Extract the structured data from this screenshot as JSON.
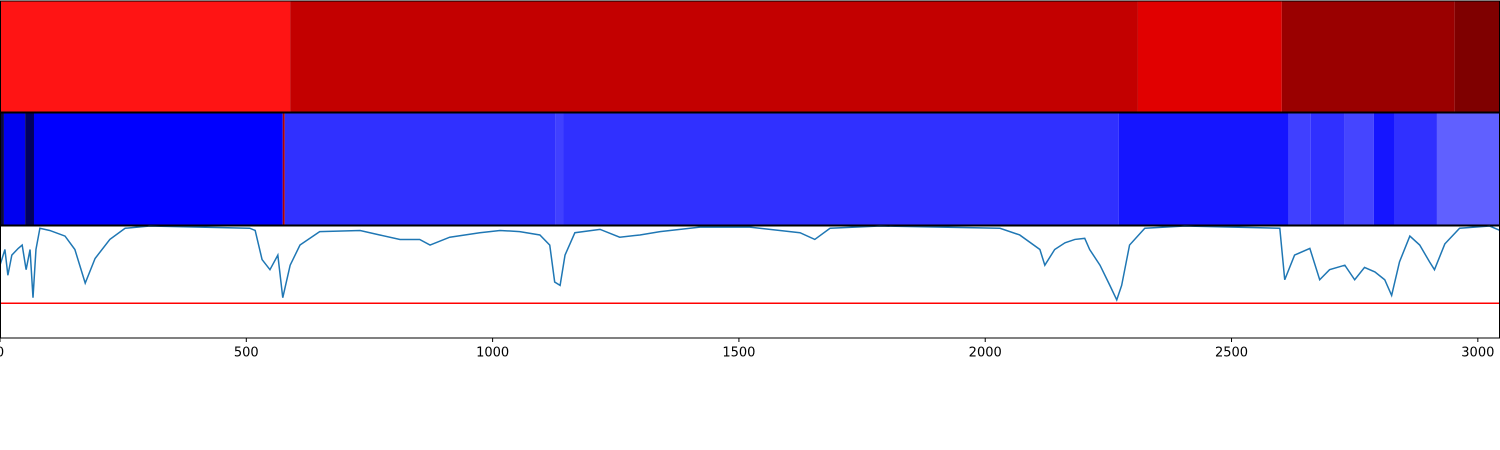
{
  "chart_data": [
    {
      "type": "segments",
      "xlim": [
        0,
        3045
      ],
      "segments": [
        {
          "start": 0,
          "end": 589,
          "color": "#ff1414"
        },
        {
          "start": 589,
          "end": 2310,
          "color": "#c30000"
        },
        {
          "start": 2310,
          "end": 2602,
          "color": "#e10000"
        },
        {
          "start": 2602,
          "end": 2953,
          "color": "#9a0000"
        },
        {
          "start": 2953,
          "end": 3045,
          "color": "#7f0000"
        }
      ]
    },
    {
      "type": "segments",
      "xlim": [
        0,
        3045
      ],
      "segments": [
        {
          "start": 0,
          "end": 8,
          "color": "#0a0a40"
        },
        {
          "start": 8,
          "end": 51,
          "color": "#0000f0"
        },
        {
          "start": 51,
          "end": 69,
          "color": "#000060"
        },
        {
          "start": 69,
          "end": 574,
          "color": "#0000ff"
        },
        {
          "start": 574,
          "end": 578,
          "color": "#b00000"
        },
        {
          "start": 578,
          "end": 1128,
          "color": "#3030ff"
        },
        {
          "start": 1128,
          "end": 1143,
          "color": "#4040ff"
        },
        {
          "start": 1143,
          "end": 2271,
          "color": "#3030ff"
        },
        {
          "start": 2271,
          "end": 2616,
          "color": "#1515ff"
        },
        {
          "start": 2616,
          "end": 2661,
          "color": "#4040ff"
        },
        {
          "start": 2661,
          "end": 2730,
          "color": "#3030ff"
        },
        {
          "start": 2730,
          "end": 2789,
          "color": "#4545ff"
        },
        {
          "start": 2789,
          "end": 2831,
          "color": "#1515ff"
        },
        {
          "start": 2831,
          "end": 2917,
          "color": "#3030ff"
        },
        {
          "start": 2917,
          "end": 3045,
          "color": "#6060ff"
        }
      ]
    },
    {
      "type": "line",
      "color": "#1f77b4",
      "xlim": [
        0,
        3045
      ],
      "ylim": [
        0,
        1
      ],
      "xticks": [
        0,
        500,
        1000,
        1500,
        2000,
        2500,
        3000
      ],
      "threshold": 0.31,
      "threshold_color": "#ff0000",
      "x": [
        0,
        10,
        16,
        24,
        37,
        45,
        53,
        61,
        67,
        73,
        81,
        101,
        132,
        152,
        173,
        193,
        223,
        254,
        304,
        406,
        507,
        518,
        532,
        548,
        564,
        574,
        589,
        609,
        649,
        731,
        771,
        812,
        852,
        873,
        913,
        974,
        1015,
        1055,
        1096,
        1116,
        1126,
        1137,
        1147,
        1167,
        1218,
        1258,
        1299,
        1340,
        1421,
        1522,
        1624,
        1654,
        1685,
        1786,
        2030,
        2070,
        2111,
        2121,
        2141,
        2162,
        2182,
        2202,
        2212,
        2233,
        2253,
        2267,
        2277,
        2293,
        2324,
        2405,
        2598,
        2608,
        2628,
        2659,
        2679,
        2699,
        2730,
        2750,
        2770,
        2791,
        2811,
        2825,
        2841,
        2862,
        2882,
        2902,
        2912,
        2933,
        2963,
        3024,
        3045
      ],
      "values": [
        0.65,
        0.79,
        0.56,
        0.74,
        0.8,
        0.83,
        0.61,
        0.79,
        0.36,
        0.79,
        0.98,
        0.96,
        0.91,
        0.79,
        0.49,
        0.71,
        0.88,
        0.98,
        1.0,
        0.99,
        0.98,
        0.96,
        0.7,
        0.61,
        0.74,
        0.36,
        0.65,
        0.83,
        0.95,
        0.96,
        0.92,
        0.88,
        0.88,
        0.83,
        0.9,
        0.94,
        0.96,
        0.95,
        0.92,
        0.83,
        0.5,
        0.47,
        0.74,
        0.94,
        0.97,
        0.9,
        0.92,
        0.95,
        0.99,
        0.99,
        0.94,
        0.88,
        0.98,
        1.0,
        0.98,
        0.92,
        0.79,
        0.65,
        0.79,
        0.85,
        0.88,
        0.89,
        0.79,
        0.65,
        0.47,
        0.34,
        0.47,
        0.83,
        0.98,
        1.0,
        0.98,
        0.52,
        0.74,
        0.8,
        0.52,
        0.61,
        0.65,
        0.52,
        0.63,
        0.59,
        0.52,
        0.38,
        0.68,
        0.91,
        0.83,
        0.68,
        0.61,
        0.84,
        0.98,
        1.0,
        0.96
      ]
    }
  ]
}
